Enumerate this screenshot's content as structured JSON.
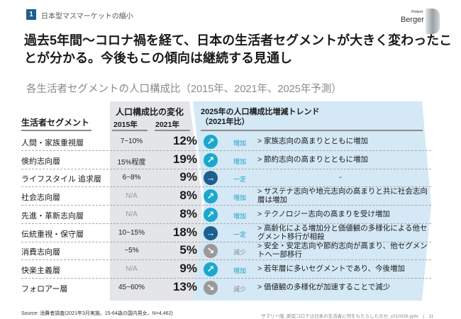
{
  "header": {
    "badge": "1",
    "section": "日本型マスマーケットの縮小",
    "logo": {
      "small": "Roland",
      "big": "Berger"
    }
  },
  "title": "過去5年間～コロナ禍を経て、日本の生活者セグメントが大きく変わったことが分かる。今後もこの傾向は継続する見通し",
  "subtitle": "各生活者セグメントの人口構成比（2015年、2021年、2025年予測）",
  "table": {
    "col_segment": "生活者セグメント",
    "col_change": "人口構成比の変化",
    "col_2015": "2015年",
    "col_2021": "2021年",
    "col_trend": "2025年の人口構成比増減トレンド",
    "col_trend_sub": "（2021年比）",
    "rows": [
      {
        "segment": "人間・家族重視層",
        "v2015": "7~10%",
        "v2021": "12%",
        "trend": "増加",
        "icon": "arrow-up-right",
        "note": "> 家族志向の高まりとともに増加"
      },
      {
        "segment": "倹約志向層",
        "v2015": "15%程度",
        "v2021": "19%",
        "trend": "増加",
        "icon": "arrow-up-right",
        "note": "> 節約志向の高まりとともに増加"
      },
      {
        "segment": "ライフスタイル 追求層",
        "v2015": "6~8%",
        "v2021": "9%",
        "trend": "一定",
        "icon": "arrow-right",
        "note": "-"
      },
      {
        "segment": "社会志向層",
        "v2015": "N/A",
        "v2021": "8%",
        "trend": "増加",
        "icon": "arrow-up-right",
        "note": "> サステナ志向や地元志向の高まりと共に社会志向層は増加"
      },
      {
        "segment": "先進・革新志向層",
        "v2015": "N/A",
        "v2021": "8%",
        "trend": "増加",
        "icon": "arrow-up-right",
        "note": "> テクノロジー志向の高まりを受け増加"
      },
      {
        "segment": "伝統重視・保守層",
        "v2015": "10~15%",
        "v2021": "18%",
        "trend": "一定",
        "icon": "arrow-right",
        "note": "> 高齢化による増加分と価値観の多様化による他セグメント移行が相殺"
      },
      {
        "segment": "消費志向層",
        "v2015": "~5%",
        "v2021": "5%",
        "trend": "減少",
        "icon": "arrow-down-right",
        "note": "> 安全・安定志向や節約志向が高まり、他セグメントへ一部移行"
      },
      {
        "segment": "快楽主義層",
        "v2015": "N/A",
        "v2021": "9%",
        "trend": "増加",
        "icon": "arrow-up-right",
        "note": "> 若年層に多いセグメントであり、今後増加"
      },
      {
        "segment": "フォロアー層",
        "v2015": "45~60%",
        "v2021": "13%",
        "trend": "減少",
        "icon": "arrow-down-right",
        "note": "> 価値観の多様化が加速することで減少"
      }
    ]
  },
  "colors": {
    "up": "#1aa8cc",
    "flat": "#1d5f8f",
    "down": "#9a9a9a"
  },
  "source": "Source: 消費者調査(2021年3月実施、15-64歳の国内男女、N=4,462)",
  "footer": "サマリー版_新型コロナは日本の生活者に何をもたらしたのか_v210326.pptx　|　11"
}
